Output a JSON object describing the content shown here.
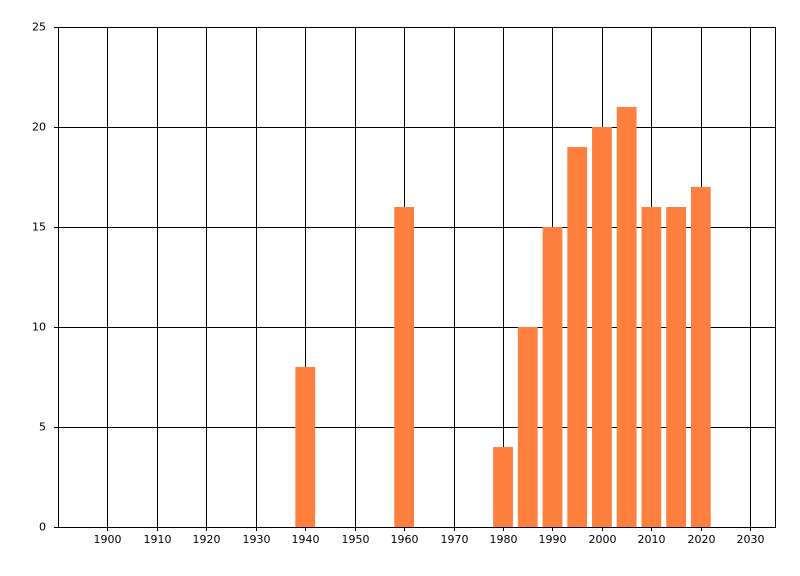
{
  "chart_data": {
    "type": "bar",
    "x": [
      1940,
      1960,
      1980,
      1985,
      1990,
      1995,
      2000,
      2005,
      2010,
      2015,
      2020
    ],
    "values": [
      8,
      16,
      4,
      10,
      15,
      19,
      20,
      21,
      16,
      16,
      17
    ],
    "color": "#ff7f3f",
    "xlim": [
      1890,
      2035
    ],
    "xticks": [
      1900,
      1910,
      1920,
      1930,
      1940,
      1950,
      1960,
      1970,
      1980,
      1990,
      2000,
      2010,
      2020,
      2030
    ],
    "ylim": [
      0,
      25
    ],
    "yticks": [
      0,
      5,
      10,
      15,
      20,
      25
    ],
    "grid": true
  }
}
